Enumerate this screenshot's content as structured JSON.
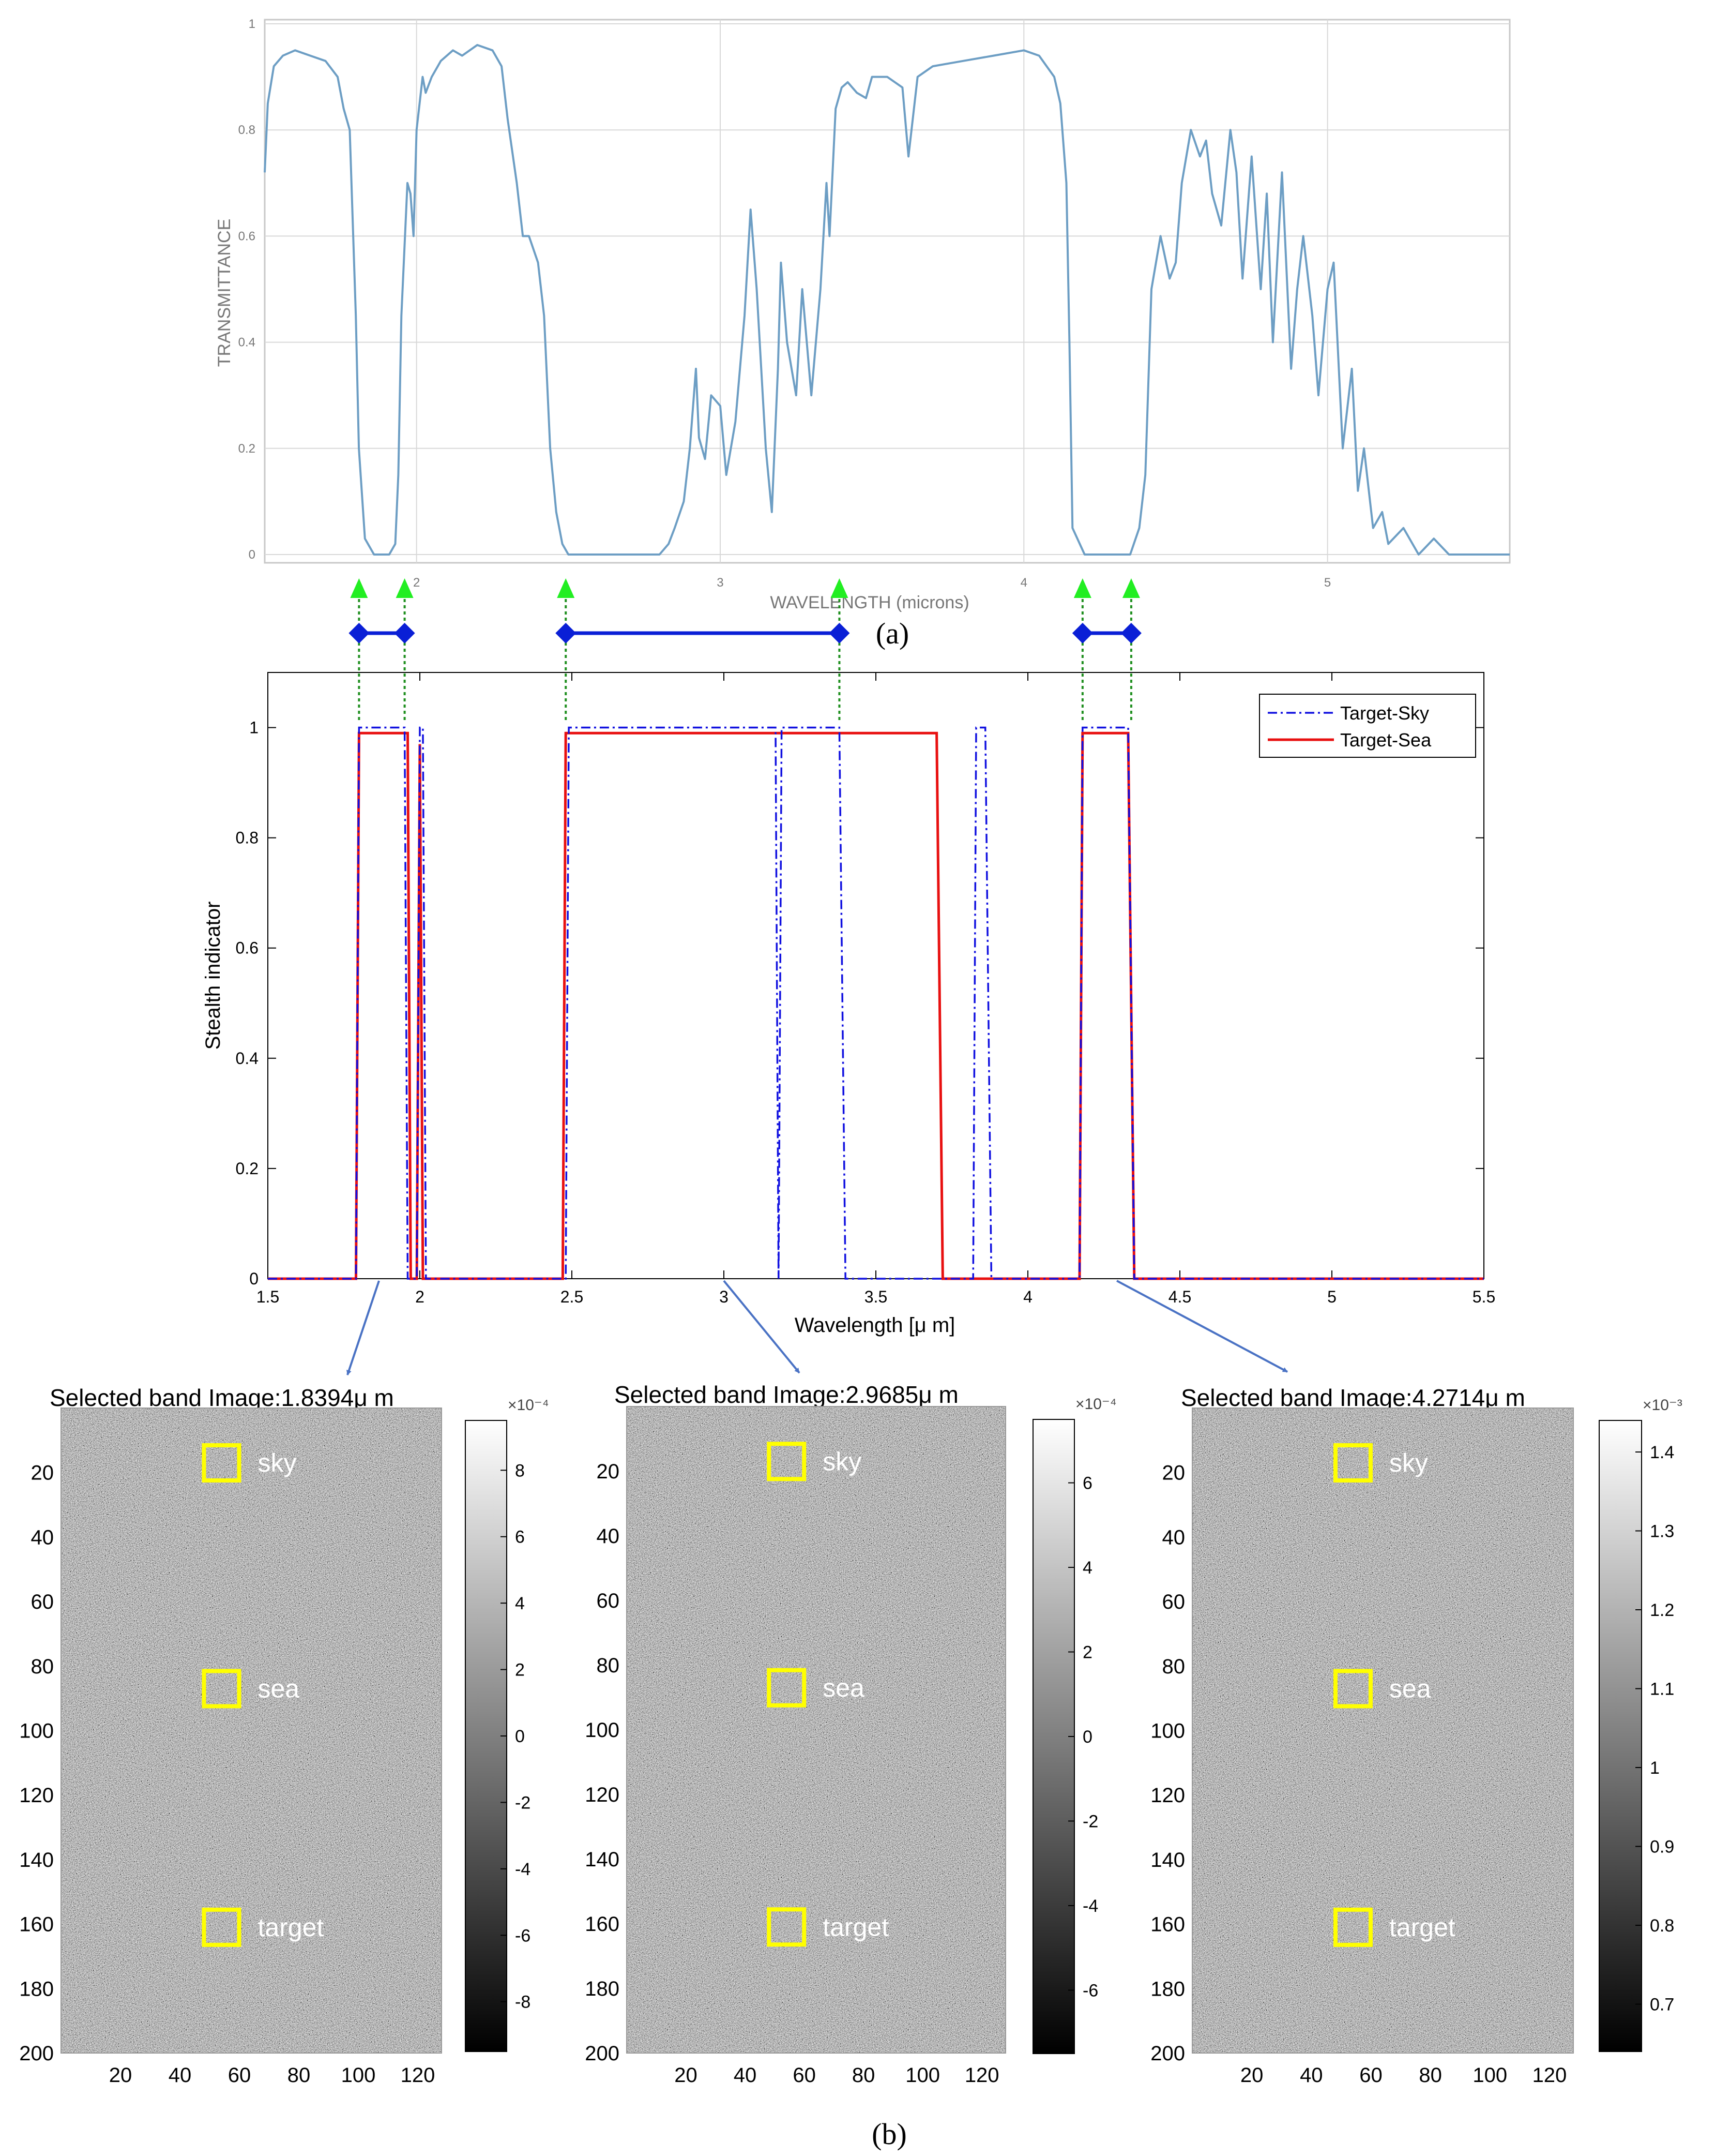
{
  "colors": {
    "transmittance_line": "#6d9ec4",
    "grid": "#d8d8d8",
    "target_sky": "#1010e0",
    "target_sea": "#e81010",
    "band_arrow": "#1f8f1f",
    "band_arrow_head": "#22ee22",
    "band_marker": "#0a1fd6",
    "callout_arrow": "#4a72c4",
    "roi_box": "#ffff00"
  },
  "labels": {
    "panel_a": "(a)",
    "panel_b": "(b)"
  },
  "band_markers": {
    "ranges_um": [
      [
        1.8,
        1.95
      ],
      [
        2.48,
        3.38
      ],
      [
        4.18,
        4.34
      ]
    ],
    "arrow_positions_um": [
      1.8,
      1.95,
      2.48,
      3.38,
      4.18,
      4.34
    ]
  },
  "chart_data": [
    {
      "id": "transmittance",
      "type": "line",
      "title": "",
      "xlabel": "WAVELENGTH (microns)",
      "ylabel": "TRANSMITTANCE",
      "xlim": [
        1.5,
        5.6
      ],
      "ylim": [
        0,
        1
      ],
      "xticks": [
        2,
        3,
        4,
        5
      ],
      "yticks": [
        0,
        0.2,
        0.4,
        0.6,
        0.8,
        1
      ],
      "ytick_labels": [
        "0",
        "0.2",
        "0.4",
        "0.6",
        "0.8",
        "1"
      ],
      "grid": true,
      "series": [
        {
          "name": "Transmittance",
          "x": [
            1.5,
            1.51,
            1.53,
            1.56,
            1.6,
            1.65,
            1.7,
            1.74,
            1.76,
            1.78,
            1.8,
            1.81,
            1.83,
            1.86,
            1.89,
            1.91,
            1.93,
            1.94,
            1.95,
            1.97,
            1.98,
            1.99,
            2.0,
            2.02,
            2.03,
            2.05,
            2.08,
            2.12,
            2.15,
            2.2,
            2.25,
            2.28,
            2.3,
            2.33,
            2.35,
            2.37,
            2.4,
            2.42,
            2.44,
            2.46,
            2.48,
            2.5,
            2.52,
            2.55,
            2.6,
            2.7,
            2.8,
            2.83,
            2.85,
            2.88,
            2.9,
            2.92,
            2.93,
            2.95,
            2.97,
            3.0,
            3.02,
            3.05,
            3.08,
            3.1,
            3.12,
            3.15,
            3.17,
            3.19,
            3.2,
            3.22,
            3.25,
            3.27,
            3.3,
            3.33,
            3.35,
            3.36,
            3.38,
            3.4,
            3.42,
            3.45,
            3.48,
            3.5,
            3.55,
            3.6,
            3.62,
            3.65,
            3.7,
            3.8,
            3.9,
            4.0,
            4.05,
            4.1,
            4.12,
            4.14,
            4.15,
            4.16,
            4.2,
            4.3,
            4.35,
            4.38,
            4.4,
            4.42,
            4.45,
            4.48,
            4.5,
            4.52,
            4.55,
            4.58,
            4.6,
            4.62,
            4.65,
            4.68,
            4.7,
            4.72,
            4.75,
            4.78,
            4.8,
            4.82,
            4.85,
            4.88,
            4.9,
            4.92,
            4.95,
            4.97,
            5.0,
            5.02,
            5.05,
            5.08,
            5.1,
            5.12,
            5.15,
            5.18,
            5.2,
            5.25,
            5.3,
            5.35,
            5.4,
            5.5,
            5.6
          ],
          "y": [
            0.72,
            0.85,
            0.92,
            0.94,
            0.95,
            0.94,
            0.93,
            0.9,
            0.84,
            0.8,
            0.45,
            0.2,
            0.03,
            0.0,
            0.0,
            0.0,
            0.02,
            0.15,
            0.45,
            0.7,
            0.68,
            0.6,
            0.8,
            0.9,
            0.87,
            0.9,
            0.93,
            0.95,
            0.94,
            0.96,
            0.95,
            0.92,
            0.82,
            0.7,
            0.6,
            0.6,
            0.55,
            0.45,
            0.2,
            0.08,
            0.02,
            0.0,
            0.0,
            0.0,
            0.0,
            0.0,
            0.0,
            0.02,
            0.05,
            0.1,
            0.2,
            0.35,
            0.22,
            0.18,
            0.3,
            0.28,
            0.15,
            0.25,
            0.45,
            0.65,
            0.5,
            0.2,
            0.08,
            0.35,
            0.55,
            0.4,
            0.3,
            0.5,
            0.3,
            0.5,
            0.7,
            0.6,
            0.84,
            0.88,
            0.89,
            0.87,
            0.86,
            0.9,
            0.9,
            0.88,
            0.75,
            0.9,
            0.92,
            0.93,
            0.94,
            0.95,
            0.94,
            0.9,
            0.85,
            0.7,
            0.4,
            0.05,
            0.0,
            0.0,
            0.0,
            0.05,
            0.15,
            0.5,
            0.6,
            0.52,
            0.55,
            0.7,
            0.8,
            0.75,
            0.78,
            0.68,
            0.62,
            0.8,
            0.72,
            0.52,
            0.75,
            0.5,
            0.68,
            0.4,
            0.72,
            0.35,
            0.5,
            0.6,
            0.45,
            0.3,
            0.5,
            0.55,
            0.2,
            0.35,
            0.12,
            0.2,
            0.05,
            0.08,
            0.02,
            0.05,
            0.0,
            0.03,
            0.0,
            0.0,
            0.0
          ]
        }
      ]
    },
    {
      "id": "stealth_indicator",
      "type": "line",
      "title": "",
      "xlabel": "Wavelength [μ m]",
      "ylabel": "Stealth indicator",
      "xlim": [
        1.5,
        5.5
      ],
      "ylim": [
        0,
        1.1
      ],
      "xticks": [
        1.5,
        2,
        2.5,
        3,
        3.5,
        4,
        4.5,
        5,
        5.5
      ],
      "xtick_labels": [
        "1.5",
        "2",
        "2.5",
        "3",
        "3.5",
        "4",
        "4.5",
        "5",
        "5.5"
      ],
      "yticks": [
        0,
        0.2,
        0.4,
        0.6,
        0.8,
        1
      ],
      "ytick_labels": [
        "0",
        "0.2",
        "0.4",
        "0.6",
        "0.8",
        "1"
      ],
      "grid": false,
      "legend": "top-right",
      "series": [
        {
          "name": "Target-Sky",
          "style": "dash-dot",
          "x": [
            1.5,
            1.79,
            1.8,
            1.95,
            1.96,
            1.99,
            2.0,
            2.01,
            2.02,
            2.48,
            2.49,
            3.17,
            3.18,
            3.19,
            3.2,
            3.38,
            3.4,
            3.82,
            3.83,
            3.86,
            3.88,
            4.17,
            4.18,
            4.33,
            4.35,
            5.5
          ],
          "y": [
            0,
            0,
            1.0,
            1.0,
            0,
            0,
            1.0,
            1.0,
            0,
            0,
            1.0,
            1.0,
            0,
            1.0,
            1.0,
            1.0,
            0,
            0,
            1.0,
            1.0,
            0,
            0,
            1.0,
            1.0,
            0,
            0
          ]
        },
        {
          "name": "Target-Sea",
          "style": "solid",
          "x": [
            1.5,
            1.79,
            1.8,
            1.96,
            1.97,
            1.99,
            2.0,
            2.01,
            2.47,
            2.48,
            3.7,
            3.72,
            4.17,
            4.18,
            4.33,
            4.35,
            5.5
          ],
          "y": [
            0,
            0,
            0.99,
            0.99,
            0,
            0,
            0.97,
            0,
            0,
            0.99,
            0.99,
            0,
            0,
            0.99,
            0.99,
            0,
            0
          ]
        }
      ]
    },
    {
      "id": "band_image_1",
      "type": "heatmap",
      "title": "Selected band Image:1.8394μ m",
      "colorbar_scale": "×10⁻⁴",
      "colorbar_range": [
        -9.5,
        9.5
      ],
      "colorbar_ticks": [
        8,
        6,
        4,
        2,
        0,
        -2,
        -4,
        -6,
        -8
      ],
      "colorbar_tick_labels": [
        "8",
        "6",
        "4",
        "2",
        "0",
        "-2",
        "-4",
        "-6",
        "-8"
      ],
      "xlim": [
        0,
        128
      ],
      "ylim": [
        0,
        200
      ],
      "xticks": [
        20,
        40,
        60,
        80,
        100,
        120
      ],
      "yticks": [
        20,
        40,
        60,
        80,
        100,
        120,
        140,
        160,
        180,
        200
      ],
      "rois": [
        {
          "label": "sky",
          "row": 17,
          "col": 54
        },
        {
          "label": "sea",
          "row": 87,
          "col": 54
        },
        {
          "label": "target",
          "row": 161,
          "col": 54
        }
      ]
    },
    {
      "id": "band_image_2",
      "type": "heatmap",
      "title": "Selected band Image:2.9685μ m",
      "colorbar_scale": "×10⁻⁴",
      "colorbar_range": [
        -7.5,
        7.5
      ],
      "colorbar_ticks": [
        6,
        4,
        2,
        0,
        -2,
        -4,
        -6
      ],
      "colorbar_tick_labels": [
        "6",
        "4",
        "2",
        "0",
        "-2",
        "-4",
        "-6"
      ],
      "xlim": [
        0,
        128
      ],
      "ylim": [
        0,
        200
      ],
      "xticks": [
        20,
        40,
        60,
        80,
        100,
        120
      ],
      "yticks": [
        20,
        40,
        60,
        80,
        100,
        120,
        140,
        160,
        180,
        200
      ],
      "rois": [
        {
          "label": "sky",
          "row": 17,
          "col": 54
        },
        {
          "label": "sea",
          "row": 87,
          "col": 54
        },
        {
          "label": "target",
          "row": 161,
          "col": 54
        }
      ]
    },
    {
      "id": "band_image_3",
      "type": "heatmap",
      "title": "Selected band Image:4.2714μ m",
      "colorbar_scale": "×10⁻³",
      "colorbar_range": [
        0.64,
        1.44
      ],
      "colorbar_ticks": [
        1.4,
        1.3,
        1.2,
        1.1,
        1,
        0.9,
        0.8,
        0.7
      ],
      "colorbar_tick_labels": [
        "1.4",
        "1.3",
        "1.2",
        "1.1",
        "1",
        "0.9",
        "0.8",
        "0.7"
      ],
      "xlim": [
        0,
        128
      ],
      "ylim": [
        0,
        200
      ],
      "xticks": [
        20,
        40,
        60,
        80,
        100,
        120
      ],
      "yticks": [
        20,
        40,
        60,
        80,
        100,
        120,
        140,
        160,
        180,
        200
      ],
      "rois": [
        {
          "label": "sky",
          "row": 17,
          "col": 54
        },
        {
          "label": "sea",
          "row": 87,
          "col": 54
        },
        {
          "label": "target",
          "row": 161,
          "col": 54
        }
      ]
    }
  ]
}
